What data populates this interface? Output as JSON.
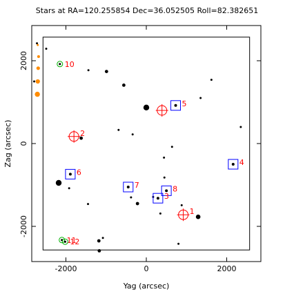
{
  "chart_data": {
    "type": "scatter",
    "title": "Stars at RA=120.255854 Dec=36.052505 Roll=82.382651",
    "xlabel": "Yag (arcsec)",
    "ylabel": "Zag (arcsec)",
    "xlim": [
      -2850,
      2850
    ],
    "ylim": [
      -2850,
      2850
    ],
    "xticks": [
      -2000,
      0,
      2000
    ],
    "yticks": [
      -2000,
      0,
      2000
    ],
    "field_box": {
      "y": [
        -2570,
        2570
      ],
      "z": [
        -2570,
        2570
      ]
    },
    "colors": {
      "axes": "#000000",
      "star": "#000000",
      "guide": "#0000ff",
      "acq": "#ff0000",
      "fid": "#00b000",
      "bad": "#ff8c00"
    },
    "stars": [
      {
        "y": -2720,
        "z": 2420,
        "size": 1
      },
      {
        "y": -2490,
        "z": 2290,
        "size": 1
      },
      {
        "y": -2790,
        "z": 1500,
        "size": 1
      },
      {
        "y": -1440,
        "z": 1770,
        "size": 1
      },
      {
        "y": -990,
        "z": 1740,
        "size": 2
      },
      {
        "y": -560,
        "z": 1410,
        "size": 2
      },
      {
        "y": 0,
        "z": 870,
        "size": 4
      },
      {
        "y": 1620,
        "z": 1540,
        "size": 1
      },
      {
        "y": 1350,
        "z": 1100,
        "size": 1
      },
      {
        "y": 2350,
        "z": 400,
        "size": 1
      },
      {
        "y": -1620,
        "z": 130,
        "size": 2
      },
      {
        "y": -690,
        "z": 330,
        "size": 1
      },
      {
        "y": -340,
        "z": 220,
        "size": 1
      },
      {
        "y": 640,
        "z": -80,
        "size": 1
      },
      {
        "y": 440,
        "z": -340,
        "size": 1
      },
      {
        "y": -2180,
        "z": -950,
        "size": 4
      },
      {
        "y": -1450,
        "z": -1460,
        "size": 1
      },
      {
        "y": -1920,
        "z": -1080,
        "size": 1
      },
      {
        "y": -220,
        "z": -1450,
        "size": 2
      },
      {
        "y": -380,
        "z": -1300,
        "size": 1
      },
      {
        "y": 170,
        "z": -1290,
        "size": 1
      },
      {
        "y": 450,
        "z": -820,
        "size": 1
      },
      {
        "y": 880,
        "z": -1490,
        "size": 1
      },
      {
        "y": 350,
        "z": -1690,
        "size": 1
      },
      {
        "y": 1290,
        "z": -1770,
        "size": 3
      },
      {
        "y": -1080,
        "z": -2280,
        "size": 1
      },
      {
        "y": -1180,
        "z": -2350,
        "size": 2
      },
      {
        "y": -1170,
        "z": -2590,
        "size": 2
      },
      {
        "y": 800,
        "z": -2420,
        "size": 1
      }
    ],
    "guide_stars": [
      {
        "id": "5",
        "y": 730,
        "z": 920
      },
      {
        "id": "4",
        "y": 2160,
        "z": -500
      },
      {
        "id": "6",
        "y": -1890,
        "z": -740
      },
      {
        "id": "7",
        "y": -450,
        "z": -1050
      },
      {
        "id": "8",
        "y": 500,
        "z": -1140
      },
      {
        "id": "3",
        "y": 290,
        "z": -1320
      }
    ],
    "acq_stars": [
      {
        "id": "2",
        "y": -1800,
        "z": 170
      },
      {
        "id": "1",
        "y": 920,
        "z": -1720
      },
      {
        "id": "",
        "y": 390,
        "z": 800
      }
    ],
    "fid_lights": [
      {
        "id": "10",
        "y": -2150,
        "z": 1920
      },
      {
        "id": "11",
        "y": -2100,
        "z": -2330
      },
      {
        "id": "12",
        "y": -2020,
        "z": -2370
      }
    ],
    "bad_region_marks": [
      {
        "y": -2700,
        "z": 2380
      },
      {
        "y": -2680,
        "z": 2100
      },
      {
        "y": -2690,
        "z": 1820
      },
      {
        "y": -2700,
        "z": 1500
      },
      {
        "y": -2710,
        "z": 1190
      }
    ]
  }
}
